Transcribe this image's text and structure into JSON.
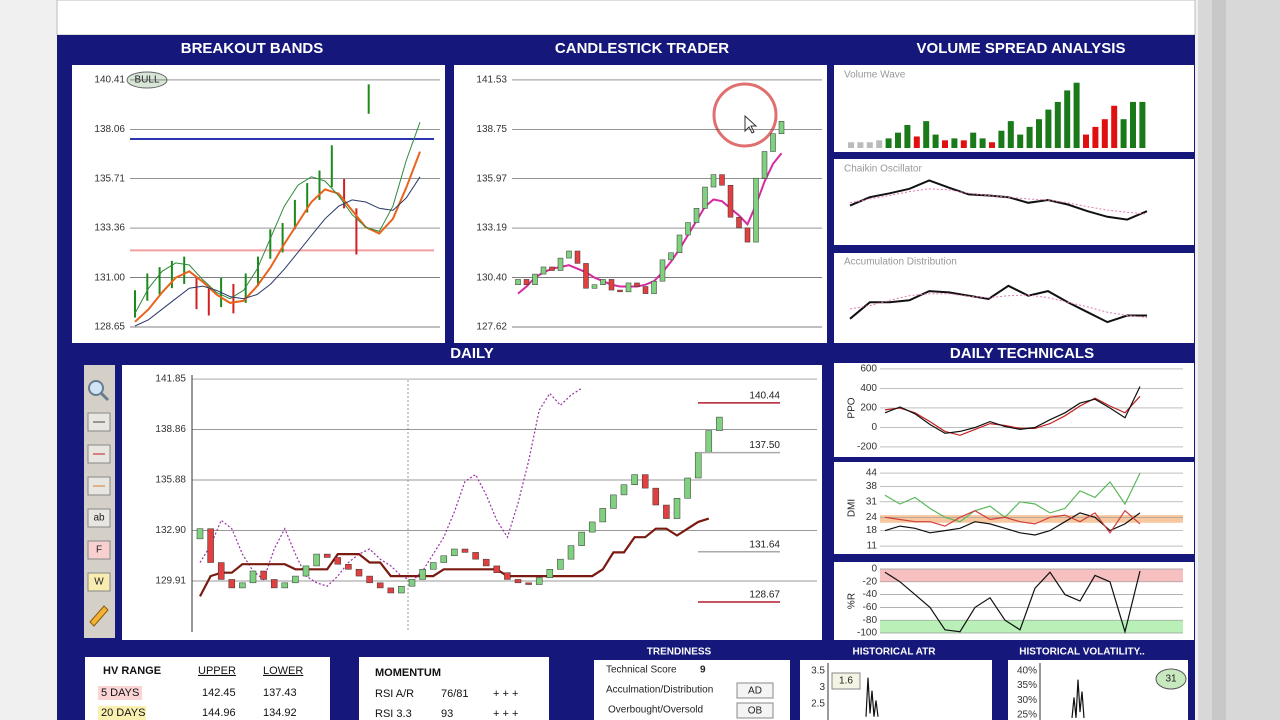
{
  "breakout": {
    "title": "BREAKOUT BANDS",
    "badge": "BULL",
    "ylim": [
      127.89,
      141.12
    ],
    "yticks": [
      140.41,
      138.06,
      135.71,
      133.36,
      {
        "value": 131,
        "label": "131.00"
      },
      128.65
    ],
    "bands": [
      {
        "value": 137.6,
        "color": "#2a35b0"
      },
      {
        "value": 132.3,
        "color": "#f0a0a0"
      }
    ],
    "bars": {
      "up_color": "#1a8a1a",
      "down_color": "#d02020",
      "highs": [
        130.4,
        131.2,
        131.5,
        131.8,
        132.0,
        131.0,
        130.6,
        131.0,
        130.7,
        131.2,
        132.0,
        133.3,
        133.6,
        134.7,
        135.5,
        136.1,
        137.3,
        135.7,
        134.3,
        140.2
      ],
      "lows": [
        129.1,
        129.9,
        130.2,
        130.5,
        130.7,
        129.5,
        129.2,
        129.6,
        129.3,
        129.8,
        130.6,
        131.9,
        132.2,
        133.3,
        134.1,
        134.7,
        135.3,
        134.3,
        132.1,
        138.8
      ]
    },
    "lines": [
      {
        "color": "#e8641e",
        "values": [
          128.9,
          129.5,
          130.3,
          131.0,
          131.3,
          130.8,
          130.2,
          129.8,
          129.9,
          130.6,
          131.5,
          132.6,
          133.6,
          134.6,
          135.2,
          135.0,
          134.2,
          133.4,
          133.1,
          133.8,
          135.3,
          137.0
        ]
      },
      {
        "color": "#2e8b3a",
        "values": [
          129.3,
          130.5,
          131.3,
          131.7,
          131.6,
          130.9,
          130.3,
          130.0,
          130.4,
          131.4,
          132.9,
          134.4,
          135.4,
          135.8,
          135.6,
          134.9,
          134.0,
          133.4,
          133.2,
          134.4,
          136.6,
          138.4
        ]
      },
      {
        "color": "#2a3a6a",
        "values": [
          128.7,
          129.0,
          129.5,
          130.0,
          130.5,
          130.6,
          130.4,
          130.1,
          130.0,
          130.2,
          130.7,
          131.4,
          132.2,
          133.0,
          133.8,
          134.4,
          134.7,
          134.6,
          134.3,
          134.2,
          134.8,
          135.8
        ]
      }
    ]
  },
  "candles": {
    "title": "CANDLESTICK TRADER",
    "ylim": [
      126.72,
      142.37
    ],
    "yticks": [
      141.53,
      138.75,
      135.97,
      133.19,
      {
        "value": 130.4,
        "label": "130.40"
      },
      127.62
    ],
    "up_color": "#7fd07f",
    "down_color": "#e04040",
    "opens": [
      130.0,
      130.3,
      130.0,
      130.6,
      131.0,
      130.8,
      131.5,
      131.9,
      131.2,
      129.8,
      130.0,
      130.3,
      129.7,
      129.6,
      130.1,
      129.9,
      129.5,
      130.2,
      131.4,
      131.8,
      132.8,
      133.5,
      134.3,
      135.5,
      136.2,
      135.6,
      133.8,
      133.2,
      132.4,
      136.0,
      137.5,
      138.5
    ],
    "closes": [
      130.3,
      130.0,
      130.6,
      131.0,
      130.8,
      131.5,
      131.9,
      131.2,
      129.8,
      130.0,
      130.3,
      129.7,
      129.6,
      130.1,
      129.9,
      129.5,
      130.2,
      131.4,
      131.8,
      132.8,
      133.5,
      134.3,
      135.5,
      136.2,
      135.6,
      133.8,
      133.2,
      132.4,
      136.0,
      137.5,
      138.5,
      139.2
    ],
    "average": {
      "color": "#d62ba0",
      "values": [
        129.5,
        129.9,
        130.4,
        130.7,
        130.9,
        131.0,
        131.1,
        130.9,
        130.7,
        130.4,
        130.2,
        130.0,
        129.9,
        129.9,
        129.9,
        130.0,
        130.2,
        130.7,
        131.3,
        132.0,
        132.8,
        133.6,
        134.4,
        134.8,
        134.7,
        134.3,
        133.9,
        133.4,
        134.5,
        135.8,
        136.8,
        137.4
      ]
    }
  },
  "vsa": {
    "title": "VOLUME SPREAD ANALYSIS",
    "volume": {
      "label": "Volume Wave",
      "values": [
        6,
        6,
        6,
        8,
        10,
        16,
        24,
        12,
        28,
        14,
        8,
        10,
        8,
        16,
        10,
        6,
        18,
        28,
        14,
        22,
        30,
        40,
        48,
        60,
        68,
        14,
        22,
        30,
        44,
        30,
        48,
        48
      ],
      "colors": [
        "#bbbbbb",
        "#bbbbbb",
        "#bbbbbb",
        "#bbbbbb",
        "#1a7a1a",
        "#1a7a1a",
        "#1a7a1a",
        "#e01010",
        "#1a7a1a",
        "#1a7a1a",
        "#e01010",
        "#1a7a1a",
        "#e01010",
        "#1a7a1a",
        "#1a7a1a",
        "#e01010",
        "#1a7a1a",
        "#1a7a1a",
        "#1a7a1a",
        "#1a7a1a",
        "#1a7a1a",
        "#1a7a1a",
        "#1a7a1a",
        "#1a7a1a",
        "#1a7a1a",
        "#e01010",
        "#e01010",
        "#e01010",
        "#e01010",
        "#1a7a1a",
        "#1a7a1a",
        "#1a7a1a"
      ]
    },
    "chaikin": {
      "label": "Chaikin Oscillator",
      "series": [
        {
          "color": "#111111",
          "values": [
            40,
            55,
            62,
            70,
            85,
            72,
            60,
            58,
            55,
            45,
            50,
            42,
            30,
            20,
            15,
            30
          ]
        },
        {
          "color": "#e07ab0",
          "style": "dotted",
          "values": [
            45,
            52,
            58,
            65,
            70,
            68,
            62,
            58,
            55,
            52,
            50,
            45,
            38,
            32,
            28,
            25
          ]
        }
      ]
    },
    "accumulation": {
      "label": "Accumulation Distribution",
      "series": [
        {
          "color": "#111111",
          "values": [
            20,
            45,
            45,
            48,
            62,
            60,
            55,
            50,
            70,
            55,
            62,
            45,
            30,
            15,
            25,
            25
          ]
        },
        {
          "color": "#e07ab0",
          "style": "dotted",
          "values": [
            35,
            40,
            48,
            55,
            58,
            58,
            54,
            52,
            55,
            56,
            52,
            45,
            38,
            30,
            25,
            22
          ]
        }
      ]
    }
  },
  "daily": {
    "title": "DAILY",
    "ylim": [
      126.42,
      142.68
    ],
    "yticks": [
      141.85,
      138.86,
      135.88,
      {
        "value": 132.9,
        "label": "132.90"
      },
      129.91
    ],
    "toolbar": [
      "ab",
      "F",
      "W"
    ],
    "up_color": "#7fd07f",
    "down_color": "#e04040",
    "opens": [
      132.4,
      133.0,
      131.0,
      130.0,
      129.5,
      129.8,
      130.5,
      130.0,
      129.5,
      129.8,
      130.2,
      130.8,
      131.5,
      131.3,
      130.9,
      130.6,
      130.2,
      129.8,
      129.5,
      129.2,
      129.6,
      130.0,
      130.6,
      131.0,
      131.4,
      131.8,
      131.6,
      131.2,
      130.8,
      130.4,
      130.0,
      129.8,
      129.7,
      130.1,
      130.6,
      131.2,
      132.0,
      132.8,
      133.4,
      134.2,
      135.0,
      135.6,
      136.2,
      135.4,
      134.4,
      133.6,
      134.8,
      136.0,
      137.5,
      138.8
    ],
    "closes": [
      133.0,
      131.0,
      130.0,
      129.5,
      129.8,
      130.5,
      130.0,
      129.5,
      129.8,
      130.2,
      130.8,
      131.5,
      131.3,
      130.9,
      130.6,
      130.2,
      129.8,
      129.5,
      129.2,
      129.6,
      130.0,
      130.6,
      131.0,
      131.4,
      131.8,
      131.6,
      131.2,
      130.8,
      130.4,
      130.0,
      129.8,
      129.7,
      130.1,
      130.6,
      131.2,
      132.0,
      132.8,
      133.4,
      134.2,
      135.0,
      135.6,
      136.2,
      135.4,
      134.4,
      133.6,
      134.8,
      136.0,
      137.5,
      138.8,
      139.6
    ],
    "lines": [
      {
        "color": "#9b30a8",
        "style": "dotted",
        "values": [
          131.0,
          132.0,
          133.5,
          133.0,
          131.5,
          130.5,
          130.0,
          131.8,
          133.0,
          131.5,
          130.2,
          129.8,
          129.6,
          130.2,
          131.0,
          131.5,
          131.8,
          131.2,
          130.8,
          130.2,
          129.9,
          130.5,
          131.5,
          132.5,
          134.0,
          135.8,
          136.2,
          135.0,
          133.5,
          132.5,
          134.5,
          137.0,
          140.0,
          141.0,
          140.3,
          140.9,
          141.3,
          null,
          null,
          null,
          null,
          null,
          null,
          null,
          null,
          null,
          null,
          null,
          null,
          null
        ]
      },
      {
        "color": "#7a1a10",
        "values": [
          129.0,
          130.2,
          130.4,
          130.4,
          130.9,
          130.9,
          130.9,
          130.9,
          130.9,
          130.6,
          130.6,
          130.6,
          130.6,
          131.5,
          131.5,
          131.5,
          131.0,
          131.0,
          130.2,
          130.2,
          130.2,
          130.2,
          130.2,
          130.6,
          130.6,
          130.6,
          130.6,
          130.6,
          130.6,
          130.2,
          130.2,
          130.2,
          130.2,
          130.2,
          130.2,
          130.2,
          130.2,
          130.2,
          130.6,
          131.6,
          131.6,
          132.5,
          132.5,
          133.0,
          133.0,
          132.6,
          133.0,
          133.4,
          133.6,
          null
        ]
      }
    ],
    "levels": [
      {
        "value": 140.44,
        "color": "#b01c2e"
      },
      {
        "value": 137.5,
        "label": "137.50",
        "color": "#aaaaaa"
      },
      {
        "value": 131.64,
        "color": "#aaaaaa"
      },
      {
        "value": 128.67,
        "color": "#b01c2e"
      }
    ]
  },
  "technicals": {
    "title": "DAILY TECHNICALS",
    "ppo": {
      "label": "PPO",
      "ylim": [
        -303,
        661
      ],
      "yticks": [
        600,
        400,
        200,
        0,
        -200
      ],
      "series": [
        {
          "color": "#c02020",
          "values": [
            180,
            200,
            150,
            60,
            -40,
            -80,
            -20,
            40,
            20,
            -10,
            -10,
            40,
            120,
            220,
            300,
            220,
            150,
            320
          ]
        },
        {
          "color": "#111111",
          "values": [
            150,
            210,
            140,
            30,
            -60,
            -40,
            0,
            60,
            10,
            -20,
            0,
            80,
            150,
            250,
            290,
            200,
            100,
            420
          ]
        }
      ]
    },
    "dmi": {
      "label": "DMI",
      "ylim": [
        7.4,
        49
      ],
      "yticks": [
        44,
        38,
        31,
        24,
        18,
        11
      ],
      "bands": [
        {
          "from": 25,
          "to": 21.5,
          "color": "#f7c8a0"
        }
      ],
      "series": [
        {
          "color": "#111111",
          "values": [
            18,
            20,
            19,
            17,
            18,
            19,
            22,
            21,
            19,
            17,
            16,
            18,
            22,
            26,
            24,
            18,
            21,
            26
          ]
        },
        {
          "color": "#5cb85c",
          "values": [
            34,
            30,
            33,
            28,
            24,
            22,
            27,
            29,
            24,
            31,
            30,
            26,
            28,
            36,
            33,
            40,
            30,
            44
          ]
        },
        {
          "color": "#d04040",
          "values": [
            24,
            23,
            22,
            22,
            20,
            24,
            27,
            23,
            24,
            22,
            21,
            24,
            25,
            22,
            26,
            17,
            27,
            21
          ]
        }
      ]
    },
    "wr": {
      "label": "%R",
      "ylim": [
        -111,
        11
      ],
      "yticks": [
        0,
        -20,
        -40,
        -60,
        -80,
        -100
      ],
      "bands": [
        {
          "from": 0,
          "to": -20,
          "color": "#f6c0c0"
        },
        {
          "from": -80,
          "to": -100,
          "color": "#b8f0b8"
        }
      ],
      "series": [
        {
          "color": "#111111",
          "values": [
            -5,
            -20,
            -40,
            -60,
            -95,
            -98,
            -60,
            -45,
            -80,
            -95,
            -30,
            -5,
            -40,
            -50,
            -10,
            -20,
            -98,
            -3
          ]
        }
      ]
    }
  },
  "hv_range": {
    "title": "HV RANGE",
    "columns": [
      "UPPER",
      "LOWER"
    ],
    "rows": [
      {
        "label": "5 DAYS",
        "upper": 142.45,
        "lower": 137.43
      },
      {
        "label": "20 DAYS",
        "upper": 144.96,
        "lower": 134.92
      }
    ]
  },
  "momentum": {
    "title": "MOMENTUM",
    "rows": [
      [
        "RSI A/R",
        "76/81",
        "+ + +"
      ],
      [
        "RSI 3.3",
        93,
        "+ + +"
      ]
    ]
  },
  "trendiness": {
    "title": "TRENDINESS",
    "rows": [
      [
        "Technical Score",
        9
      ],
      [
        "Acculmation/Distribution",
        "AD"
      ],
      [
        "Overbought/Oversold",
        "OB"
      ]
    ]
  },
  "atr": {
    "title": "HISTORICAL ATR",
    "badge": 1.6,
    "ylim": [
      2.0,
      3.84
    ],
    "yticks": [
      3.5,
      3,
      2.5
    ],
    "color": "#111111",
    "values": [
      2.1,
      3.3,
      2.2,
      2.9,
      2.1,
      2.6,
      2.1
    ]
  },
  "volatility": {
    "title": "HISTORICAL VOLATILITY..",
    "badge": 31,
    "ylim": [
      23.3,
      43.7
    ],
    "yticks": [
      {
        "value": 40,
        "label": "40%"
      },
      {
        "value": 35,
        "label": "35%"
      },
      {
        "value": 30,
        "label": "30%"
      },
      {
        "value": 25,
        "label": "25%"
      }
    ],
    "color": "#111111",
    "values": [
      24,
      31,
      24,
      37,
      26,
      33,
      24
    ]
  }
}
